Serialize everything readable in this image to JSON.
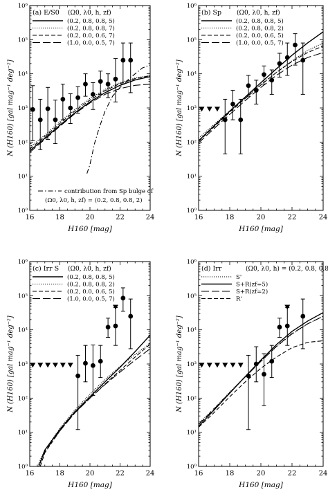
{
  "chart_data": [
    {
      "type": "line",
      "panel_label": "(a) E/S0",
      "legend_header": "(Ω0, λ0, h, zf)",
      "xlabel": "H160 [mag]",
      "ylabel": "N (H160) [gal mag⁻¹ deg⁻²]",
      "xlim": [
        16,
        24
      ],
      "ylim": [
        1,
        1000000
      ],
      "ylog": true,
      "xticks": [
        16,
        18,
        20,
        22,
        24
      ],
      "yticks": [
        "10⁰",
        "10¹",
        "10²",
        "10³",
        "10⁴",
        "10⁵",
        "10⁶"
      ],
      "series": [
        {
          "name": "(0.2, 0.8, 0.8, 5)",
          "style": "solid",
          "x": [
            16,
            17,
            18,
            19,
            20,
            21,
            22,
            23,
            24
          ],
          "y": [
            55,
            130,
            310,
            720,
            1500,
            2800,
            4600,
            6600,
            8300
          ]
        },
        {
          "name": "(0.2, 0.8, 0.8, 7)",
          "style": "dotted",
          "x": [
            16,
            17,
            18,
            19,
            20,
            21,
            22,
            23,
            24
          ],
          "y": [
            70,
            160,
            390,
            900,
            1900,
            3500,
            5500,
            7500,
            9000
          ]
        },
        {
          "name": "(0.2, 0.0, 0.6, 7)",
          "style": "dashed",
          "x": [
            16,
            17,
            18,
            19,
            20,
            21,
            22,
            23,
            24
          ],
          "y": [
            62,
            145,
            350,
            820,
            1700,
            3200,
            5200,
            7200,
            8800
          ]
        },
        {
          "name": "(1.0, 0.0, 0.5, 7)",
          "style": "longdash",
          "x": [
            16,
            17,
            18,
            19,
            20,
            21,
            22,
            23,
            24
          ],
          "y": [
            50,
            120,
            290,
            680,
            1400,
            2500,
            3700,
            4600,
            5000
          ]
        },
        {
          "name": "contribution from Sp bulge of",
          "style": "dashdot",
          "x": [
            19.8,
            20.0,
            20.3,
            20.6,
            21.0,
            21.5,
            22.0,
            22.5,
            23.0,
            23.5,
            24
          ],
          "y": [
            12,
            22,
            90,
            250,
            800,
            2200,
            4000,
            6500,
            10000,
            15000,
            18000
          ]
        }
      ],
      "annotation": [
        "contribution from Sp bulge of",
        "(Ω0, λ0, h, zf) = (0.2, 0.8, 0.8, 2)"
      ],
      "points": [
        {
          "x": 16.2,
          "y": 900,
          "lo": 110,
          "hi": 4500
        },
        {
          "x": 16.7,
          "y": 450,
          "lo": 60,
          "hi": 1800
        },
        {
          "x": 17.2,
          "y": 950,
          "lo": 120,
          "hi": 4000
        },
        {
          "x": 17.7,
          "y": 450,
          "lo": 90,
          "hi": 1700
        },
        {
          "x": 18.2,
          "y": 1800,
          "lo": 450,
          "hi": 5000
        },
        {
          "x": 18.7,
          "y": 1000,
          "lo": 350,
          "hi": 2600
        },
        {
          "x": 19.2,
          "y": 2000,
          "lo": 700,
          "hi": 4200
        },
        {
          "x": 19.7,
          "y": 5000,
          "lo": 2200,
          "hi": 10000
        },
        {
          "x": 20.2,
          "y": 2500,
          "lo": 900,
          "hi": 5500
        },
        {
          "x": 20.7,
          "y": 6000,
          "lo": 2500,
          "hi": 12000
        },
        {
          "x": 21.2,
          "y": 5000,
          "lo": 2000,
          "hi": 10000
        },
        {
          "x": 21.7,
          "y": 7000,
          "lo": 1500,
          "hi": 28000
        },
        {
          "x": 22.2,
          "y": 25000,
          "lo": 5000,
          "hi": 80000
        },
        {
          "x": 22.7,
          "y": 25000,
          "lo": 2800,
          "hi": 80000
        }
      ],
      "upper_limits": []
    },
    {
      "type": "line",
      "panel_label": "(b) Sp",
      "legend_header": "(Ω0, λ0, h, zf)",
      "xlabel": "H160 [mag]",
      "ylabel": "N (H160) [gal mag⁻¹ deg⁻²]",
      "xlim": [
        16,
        24
      ],
      "ylim": [
        1,
        1000000
      ],
      "ylog": true,
      "xticks": [
        16,
        18,
        20,
        22,
        24
      ],
      "yticks": [
        "10⁰",
        "10¹",
        "10²",
        "10³",
        "10⁴",
        "10⁵",
        "10⁶"
      ],
      "series": [
        {
          "name": "(0.2, 0.8, 0.8, 5)",
          "style": "solid",
          "x": [
            16,
            17,
            18,
            19,
            20,
            21,
            22,
            23,
            24
          ],
          "y": [
            110,
            300,
            800,
            2100,
            5500,
            14000,
            35000,
            80000,
            170000
          ]
        },
        {
          "name": "(0.2, 0.8, 0.8, 2)",
          "style": "dotted",
          "x": [
            16,
            17,
            18,
            19,
            20,
            21,
            22,
            23,
            24
          ],
          "y": [
            130,
            330,
            830,
            2000,
            4800,
            11000,
            24000,
            48000,
            80000
          ]
        },
        {
          "name": "(0.2, 0.0, 0.6, 5)",
          "style": "dashed",
          "x": [
            16,
            17,
            18,
            19,
            20,
            21,
            22,
            23,
            24
          ],
          "y": [
            105,
            280,
            750,
            1900,
            4700,
            11000,
            23000,
            42000,
            65000
          ]
        },
        {
          "name": "(1.0, 0.0, 0.5, 7)",
          "style": "longdash",
          "x": [
            16,
            17,
            18,
            19,
            20,
            21,
            22,
            23,
            24
          ],
          "y": [
            95,
            250,
            650,
            1650,
            4000,
            9000,
            18000,
            30000,
            42000
          ]
        }
      ],
      "points": [
        {
          "x": 17.7,
          "y": 450,
          "lo": 45,
          "hi": 1800
        },
        {
          "x": 18.2,
          "y": 1300,
          "lo": 450,
          "hi": 3300
        },
        {
          "x": 18.7,
          "y": 450,
          "lo": 45,
          "hi": 1800
        },
        {
          "x": 19.2,
          "y": 4500,
          "lo": 2200,
          "hi": 9000
        },
        {
          "x": 19.7,
          "y": 3300,
          "lo": 1300,
          "hi": 6500
        },
        {
          "x": 20.2,
          "y": 9500,
          "lo": 5000,
          "hi": 17000
        },
        {
          "x": 20.7,
          "y": 6500,
          "lo": 2500,
          "hi": 13000
        },
        {
          "x": 21.2,
          "y": 20000,
          "lo": 8000,
          "hi": 40000
        },
        {
          "x": 21.7,
          "y": 30000,
          "lo": 9000,
          "hi": 80000
        },
        {
          "x": 22.2,
          "y": 70000,
          "lo": 18000,
          "hi": 150000
        },
        {
          "x": 22.7,
          "y": 25000,
          "lo": 2500,
          "hi": 80000
        }
      ],
      "upper_limits": [
        {
          "x": 16.2,
          "y": 900
        },
        {
          "x": 16.7,
          "y": 900
        },
        {
          "x": 17.2,
          "y": 900
        }
      ]
    },
    {
      "type": "line",
      "panel_label": "(c) Irr S",
      "legend_header": "(Ω0, λ0, h, zf)",
      "xlabel": "H160 [mag]",
      "ylabel": "N (H160) [gal mag⁻¹ deg⁻²]",
      "xlim": [
        16,
        24
      ],
      "ylim": [
        1,
        1000000
      ],
      "ylog": true,
      "xticks": [
        16,
        18,
        20,
        22,
        24
      ],
      "yticks": [
        "10⁰",
        "10¹",
        "10²",
        "10³",
        "10⁴",
        "10⁵",
        "10⁶"
      ],
      "series": [
        {
          "name": "(0.2, 0.8, 0.8, 5)",
          "style": "solid",
          "x": [
            16.6,
            17,
            18,
            19,
            20,
            21,
            22,
            23,
            24
          ],
          "y": [
            1,
            3,
            12,
            40,
            110,
            300,
            800,
            2300,
            7000
          ]
        },
        {
          "name": "(0.2, 0.8, 0.8, 2)",
          "style": "dotted",
          "x": [
            16.5,
            17,
            18,
            19,
            20,
            21,
            22,
            23,
            24
          ],
          "y": [
            1,
            3,
            13,
            45,
            130,
            350,
            850,
            1900,
            4000
          ]
        },
        {
          "name": "(0.2, 0.0, 0.6, 5)",
          "style": "dashed",
          "x": [
            16.7,
            17,
            18,
            19,
            20,
            21,
            22,
            23,
            24
          ],
          "y": [
            1,
            2.5,
            11,
            38,
            100,
            260,
            650,
            1600,
            3800
          ]
        },
        {
          "name": "(1.0, 0.0, 0.5, 7)",
          "style": "longdash",
          "x": [
            16.6,
            17,
            18,
            19,
            20,
            21,
            22,
            23,
            24
          ],
          "y": [
            1,
            2.7,
            11,
            37,
            100,
            250,
            580,
            1300,
            2800
          ]
        }
      ],
      "points": [
        {
          "x": 19.2,
          "y": 450,
          "lo": 12,
          "hi": 1800
        },
        {
          "x": 19.7,
          "y": 1050,
          "lo": 300,
          "hi": 3500
        },
        {
          "x": 20.2,
          "y": 900,
          "lo": 120,
          "hi": 3600
        },
        {
          "x": 20.7,
          "y": 1200,
          "lo": 400,
          "hi": 3500
        },
        {
          "x": 21.2,
          "y": 12000,
          "lo": 6000,
          "hi": 22000
        },
        {
          "x": 21.7,
          "y": 13000,
          "lo": 3500,
          "hi": 45000
        },
        {
          "x": 22.2,
          "y": 85000,
          "lo": 35000,
          "hi": 170000
        },
        {
          "x": 22.7,
          "y": 25000,
          "lo": 2800,
          "hi": 80000
        }
      ],
      "upper_limits": [
        {
          "x": 16.2,
          "y": 900
        },
        {
          "x": 16.7,
          "y": 900
        },
        {
          "x": 17.2,
          "y": 900
        },
        {
          "x": 17.7,
          "y": 900
        },
        {
          "x": 18.2,
          "y": 900
        },
        {
          "x": 18.7,
          "y": 900
        },
        {
          "x": 21.7,
          "y": 45000
        }
      ]
    },
    {
      "type": "line",
      "panel_label": "(d) Irr",
      "legend_header": "(Ω0, λ0, h) = (0.2, 0.8, 0.8)",
      "xlabel": "H160 [mag]",
      "ylabel": "N (H160) [gal mag⁻¹ deg⁻²]",
      "xlim": [
        16,
        24
      ],
      "ylim": [
        1,
        1000000
      ],
      "ylog": true,
      "xticks": [
        16,
        18,
        20,
        22,
        24
      ],
      "yticks": [
        "10⁰",
        "10¹",
        "10²",
        "10³",
        "10⁴",
        "10⁵",
        "10⁶"
      ],
      "series": [
        {
          "name": "S'",
          "style": "dotted",
          "x": [
            16,
            17,
            18,
            19,
            20,
            21,
            22,
            23,
            24
          ],
          "y": [
            18,
            50,
            150,
            430,
            1200,
            3200,
            7500,
            15000,
            25000
          ]
        },
        {
          "name": "S+R(zf=5)",
          "style": "solid",
          "x": [
            16,
            17,
            18,
            19,
            20,
            21,
            22,
            23,
            24
          ],
          "y": [
            15,
            45,
            140,
            430,
            1300,
            3700,
            9000,
            18000,
            32000
          ]
        },
        {
          "name": "S+R(zf=2)",
          "style": "longdash",
          "x": [
            16,
            17,
            18,
            19,
            20,
            21,
            22,
            23,
            24
          ],
          "y": [
            17,
            48,
            145,
            420,
            1200,
            3300,
            7800,
            15000,
            25000
          ]
        },
        {
          "name": "R'",
          "style": "dashed",
          "x": [
            16,
            17,
            18,
            19,
            20,
            21,
            22,
            23,
            24
          ],
          "y": [
            14,
            38,
            110,
            300,
            750,
            1600,
            3000,
            4300,
            4800
          ]
        }
      ],
      "points": [
        {
          "x": 19.2,
          "y": 450,
          "lo": 12,
          "hi": 1800
        },
        {
          "x": 19.7,
          "y": 1000,
          "lo": 300,
          "hi": 3200
        },
        {
          "x": 20.2,
          "y": 500,
          "lo": 60,
          "hi": 2000
        },
        {
          "x": 20.7,
          "y": 1200,
          "lo": 400,
          "hi": 3500
        },
        {
          "x": 21.2,
          "y": 12000,
          "lo": 6000,
          "hi": 22000
        },
        {
          "x": 21.7,
          "y": 13000,
          "lo": 3500,
          "hi": 45000
        },
        {
          "x": 22.7,
          "y": 25000,
          "lo": 2800,
          "hi": 80000
        }
      ],
      "upper_limits": [
        {
          "x": 16.2,
          "y": 900
        },
        {
          "x": 16.7,
          "y": 900
        },
        {
          "x": 17.2,
          "y": 900
        },
        {
          "x": 17.7,
          "y": 900
        },
        {
          "x": 18.2,
          "y": 900
        },
        {
          "x": 18.7,
          "y": 900
        },
        {
          "x": 21.7,
          "y": 45000
        }
      ]
    }
  ]
}
